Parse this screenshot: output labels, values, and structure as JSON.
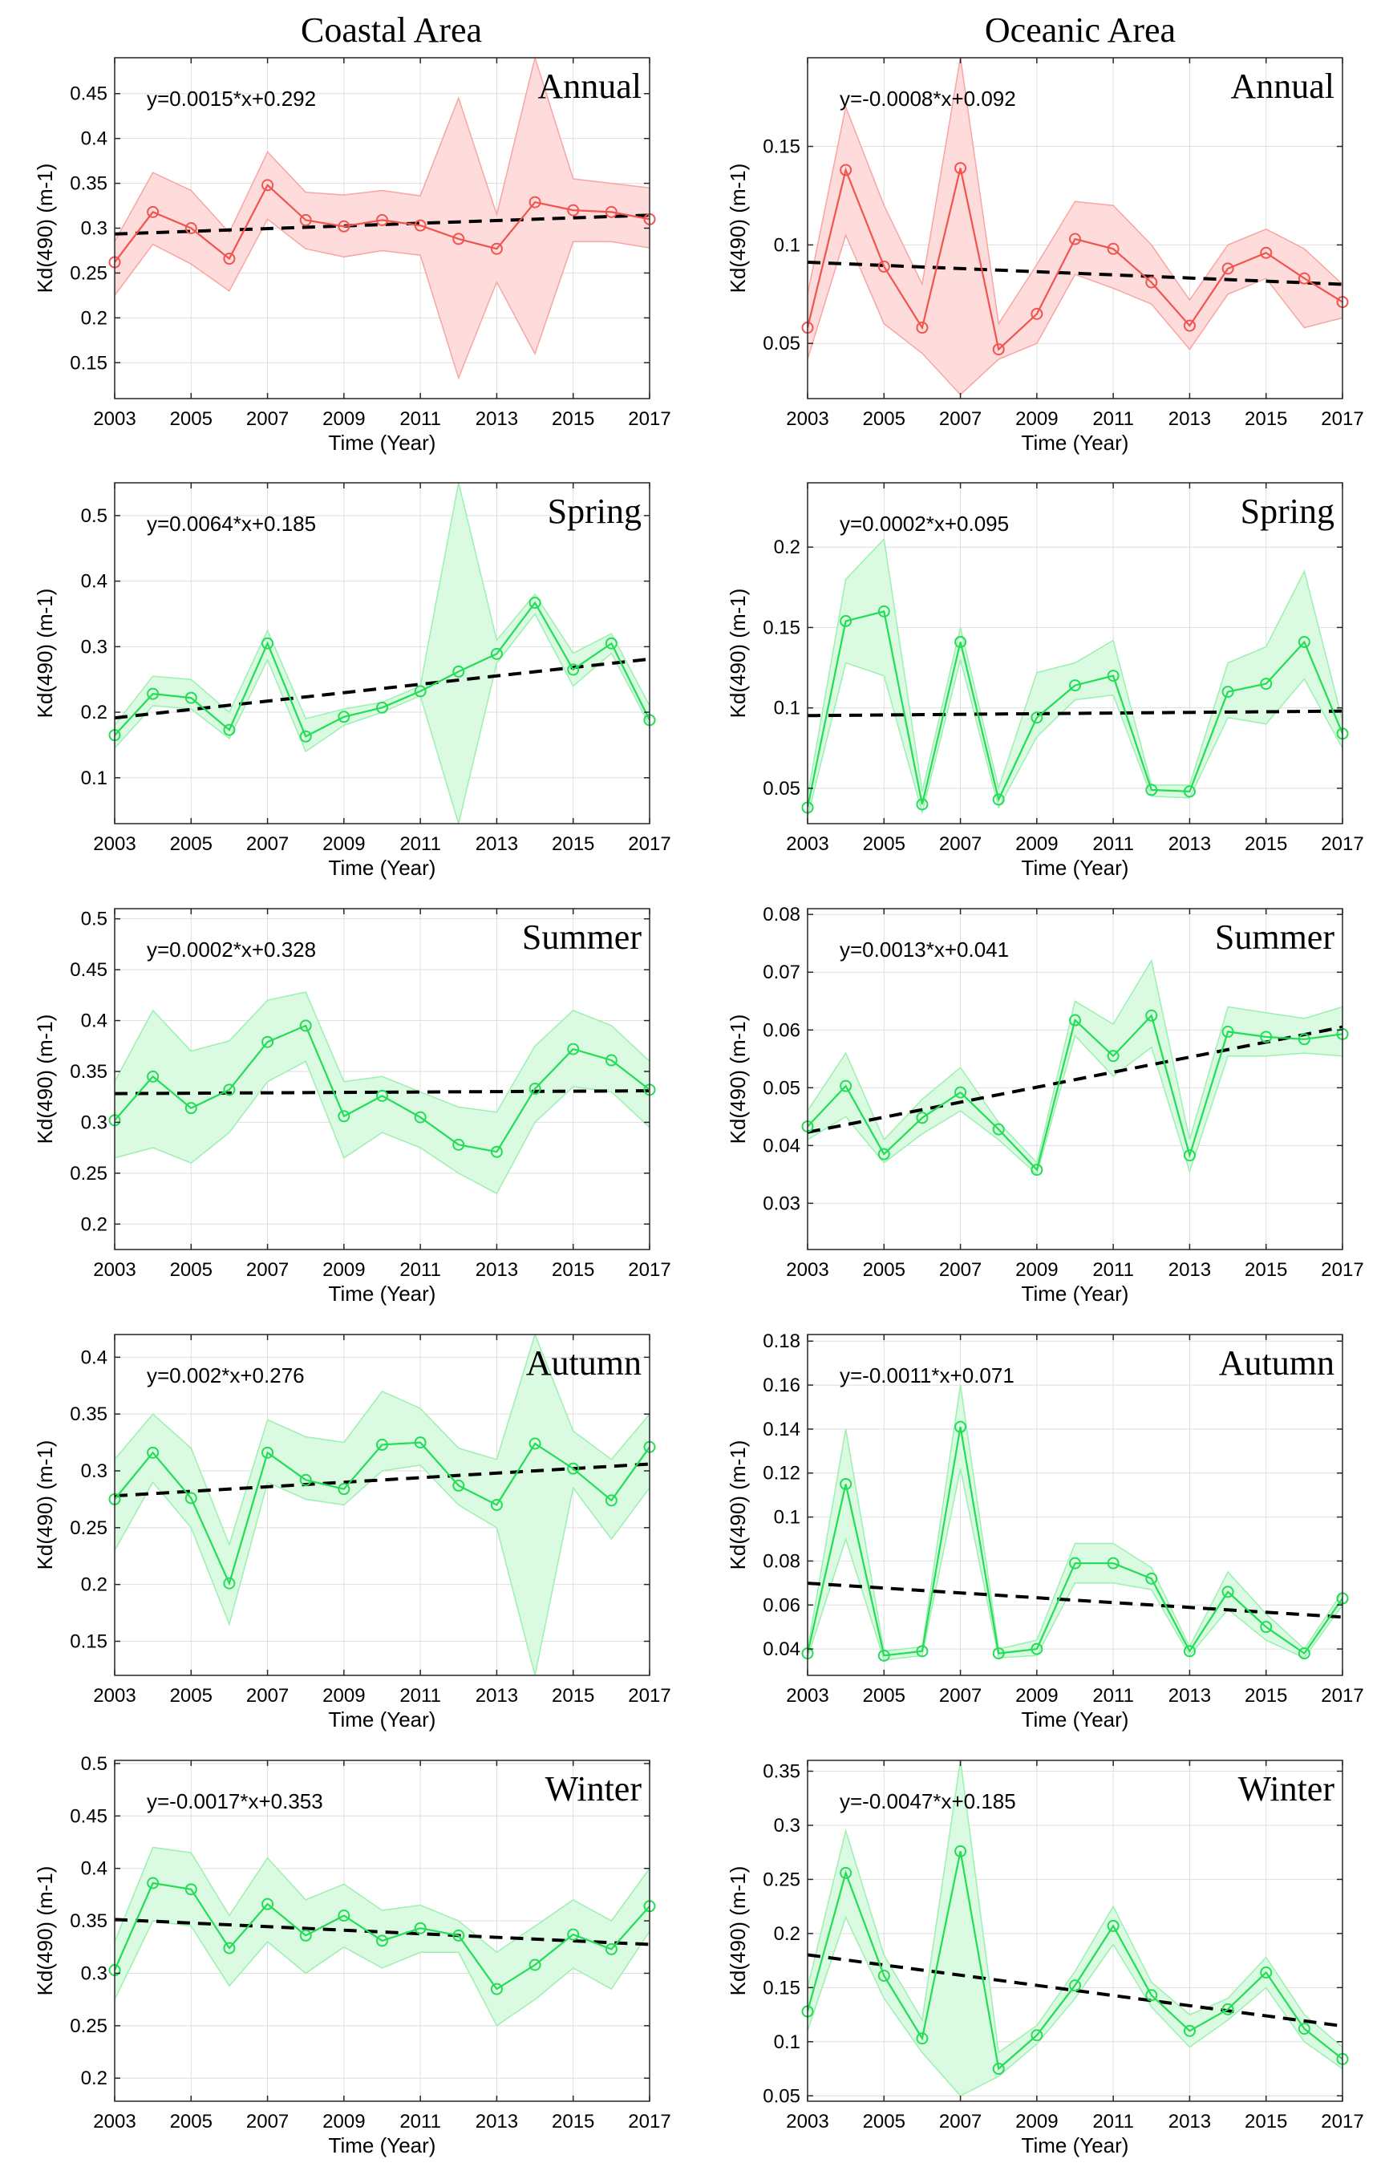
{
  "figure": {
    "column_titles": [
      "Coastal Area",
      "Oceanic Area"
    ],
    "band_colors": {
      "annual": {
        "line": "#f0544f",
        "fill": "#ffdcdc",
        "edge": "#f7a5a2"
      },
      "seasonal": {
        "line": "#22dd55",
        "fill": "#dafbe2",
        "edge": "#9bf0b0"
      }
    },
    "trend_color": "#000000"
  },
  "chart_data": [
    {
      "id": "coastal-annual",
      "type": "line",
      "area": "Coastal Area",
      "panel_label": "Annual",
      "band": "annual",
      "equation": "y=0.0015*x+0.292",
      "x": [
        2003,
        2004,
        2005,
        2006,
        2007,
        2008,
        2009,
        2010,
        2011,
        2012,
        2013,
        2014,
        2015,
        2016,
        2017
      ],
      "values": [
        0.262,
        0.318,
        0.3,
        0.266,
        0.348,
        0.309,
        0.302,
        0.309,
        0.303,
        0.288,
        0.277,
        0.329,
        0.32,
        0.318,
        0.31
      ],
      "upper": [
        0.285,
        0.362,
        0.342,
        0.295,
        0.385,
        0.34,
        0.337,
        0.342,
        0.336,
        0.445,
        0.315,
        0.49,
        0.355,
        0.35,
        0.345
      ],
      "lower": [
        0.225,
        0.282,
        0.26,
        0.23,
        0.31,
        0.277,
        0.268,
        0.275,
        0.27,
        0.133,
        0.24,
        0.16,
        0.285,
        0.285,
        0.278
      ],
      "trend": {
        "slope": 0.0015,
        "intercept": 0.292
      },
      "xlabel": "Time (Year)",
      "ylabel": "Kd(490) (m-1)",
      "xticks": [
        2003,
        2005,
        2007,
        2009,
        2011,
        2013,
        2015,
        2017
      ],
      "yticks": [
        0.15,
        0.2,
        0.25,
        0.3,
        0.35,
        0.4,
        0.45
      ],
      "ytick_labels": [
        "0.15",
        "0.2",
        "0.25",
        "0.3",
        "0.35",
        "0.4",
        "0.45"
      ],
      "xlim": [
        2003,
        2017
      ],
      "ylim": [
        0.11,
        0.49
      ],
      "grid": true
    },
    {
      "id": "oceanic-annual",
      "type": "line",
      "area": "Oceanic Area",
      "panel_label": "Annual",
      "band": "annual",
      "equation": "y=-0.0008*x+0.092",
      "x": [
        2003,
        2004,
        2005,
        2006,
        2007,
        2008,
        2009,
        2010,
        2011,
        2012,
        2013,
        2014,
        2015,
        2016,
        2017
      ],
      "values": [
        0.058,
        0.138,
        0.089,
        0.058,
        0.139,
        0.047,
        0.065,
        0.103,
        0.098,
        0.081,
        0.059,
        0.088,
        0.096,
        0.083,
        0.071
      ],
      "upper": [
        0.075,
        0.17,
        0.12,
        0.08,
        0.195,
        0.06,
        0.09,
        0.122,
        0.12,
        0.1,
        0.072,
        0.1,
        0.108,
        0.098,
        0.08
      ],
      "lower": [
        0.042,
        0.105,
        0.06,
        0.045,
        0.024,
        0.042,
        0.05,
        0.085,
        0.078,
        0.07,
        0.047,
        0.075,
        0.083,
        0.058,
        0.063
      ],
      "trend": {
        "slope": -0.0008,
        "intercept": 0.092
      },
      "xlabel": "Time (Year)",
      "ylabel": "Kd(490) (m-1)",
      "xticks": [
        2003,
        2005,
        2007,
        2009,
        2011,
        2013,
        2015,
        2017
      ],
      "yticks": [
        0.05,
        0.1,
        0.15
      ],
      "ytick_labels": [
        "0.05",
        "0.1",
        "0.15"
      ],
      "xlim": [
        2003,
        2017
      ],
      "ylim": [
        0.022,
        0.195
      ],
      "grid": true
    },
    {
      "id": "coastal-spring",
      "type": "line",
      "area": "Coastal Area",
      "panel_label": "Spring",
      "band": "seasonal",
      "equation": "y=0.0064*x+0.185",
      "x": [
        2003,
        2004,
        2005,
        2006,
        2007,
        2008,
        2009,
        2010,
        2011,
        2012,
        2013,
        2014,
        2015,
        2016,
        2017
      ],
      "values": [
        0.165,
        0.228,
        0.222,
        0.173,
        0.305,
        0.163,
        0.193,
        0.207,
        0.232,
        0.262,
        0.289,
        0.367,
        0.265,
        0.305,
        0.188
      ],
      "upper": [
        0.18,
        0.255,
        0.25,
        0.2,
        0.325,
        0.19,
        0.205,
        0.215,
        0.24,
        0.55,
        0.31,
        0.38,
        0.29,
        0.32,
        0.21
      ],
      "lower": [
        0.145,
        0.21,
        0.205,
        0.16,
        0.28,
        0.14,
        0.18,
        0.2,
        0.225,
        0.03,
        0.275,
        0.35,
        0.24,
        0.29,
        0.18
      ],
      "trend": {
        "slope": 0.0064,
        "intercept": 0.185
      },
      "xlabel": "Time (Year)",
      "ylabel": "Kd(490) (m-1)",
      "xticks": [
        2003,
        2005,
        2007,
        2009,
        2011,
        2013,
        2015,
        2017
      ],
      "yticks": [
        0.1,
        0.2,
        0.3,
        0.4,
        0.5
      ],
      "ytick_labels": [
        "0.1",
        "0.2",
        "0.3",
        "0.4",
        "0.5"
      ],
      "xlim": [
        2003,
        2017
      ],
      "ylim": [
        0.03,
        0.55
      ],
      "grid": true
    },
    {
      "id": "oceanic-spring",
      "type": "line",
      "area": "Oceanic Area",
      "panel_label": "Spring",
      "band": "seasonal",
      "equation": "y=0.0002*x+0.095",
      "x": [
        2003,
        2004,
        2005,
        2006,
        2007,
        2008,
        2009,
        2010,
        2011,
        2012,
        2013,
        2014,
        2015,
        2016,
        2017
      ],
      "values": [
        0.038,
        0.154,
        0.16,
        0.04,
        0.141,
        0.043,
        0.094,
        0.114,
        0.12,
        0.049,
        0.048,
        0.11,
        0.115,
        0.141,
        0.084
      ],
      "upper": [
        0.045,
        0.18,
        0.205,
        0.048,
        0.15,
        0.05,
        0.122,
        0.128,
        0.142,
        0.052,
        0.052,
        0.128,
        0.138,
        0.185,
        0.092
      ],
      "lower": [
        0.032,
        0.128,
        0.12,
        0.035,
        0.13,
        0.038,
        0.082,
        0.105,
        0.108,
        0.045,
        0.044,
        0.094,
        0.09,
        0.118,
        0.075
      ],
      "trend": {
        "slope": 0.0002,
        "intercept": 0.095
      },
      "xlabel": "Time (Year)",
      "ylabel": "Kd(490) (m-1)",
      "xticks": [
        2003,
        2005,
        2007,
        2009,
        2011,
        2013,
        2015,
        2017
      ],
      "yticks": [
        0.05,
        0.1,
        0.15,
        0.2
      ],
      "ytick_labels": [
        "0.05",
        "0.1",
        "0.15",
        "0.2"
      ],
      "xlim": [
        2003,
        2017
      ],
      "ylim": [
        0.028,
        0.24
      ],
      "grid": true
    },
    {
      "id": "coastal-summer",
      "type": "line",
      "area": "Coastal Area",
      "panel_label": "Summer",
      "band": "seasonal",
      "equation": "y=0.0002*x+0.328",
      "x": [
        2003,
        2004,
        2005,
        2006,
        2007,
        2008,
        2009,
        2010,
        2011,
        2012,
        2013,
        2014,
        2015,
        2016,
        2017
      ],
      "values": [
        0.302,
        0.345,
        0.314,
        0.332,
        0.379,
        0.395,
        0.306,
        0.326,
        0.305,
        0.278,
        0.271,
        0.333,
        0.372,
        0.361,
        0.332
      ],
      "upper": [
        0.34,
        0.41,
        0.37,
        0.38,
        0.42,
        0.428,
        0.34,
        0.345,
        0.33,
        0.315,
        0.31,
        0.375,
        0.41,
        0.395,
        0.36
      ],
      "lower": [
        0.265,
        0.275,
        0.26,
        0.29,
        0.34,
        0.36,
        0.265,
        0.29,
        0.275,
        0.25,
        0.23,
        0.3,
        0.335,
        0.33,
        0.295
      ],
      "trend": {
        "slope": 0.0002,
        "intercept": 0.328
      },
      "xlabel": "Time (Year)",
      "ylabel": "Kd(490) (m-1)",
      "xticks": [
        2003,
        2005,
        2007,
        2009,
        2011,
        2013,
        2015,
        2017
      ],
      "yticks": [
        0.2,
        0.25,
        0.3,
        0.35,
        0.4,
        0.45,
        0.5
      ],
      "ytick_labels": [
        "0.2",
        "0.25",
        "0.3",
        "0.35",
        "0.4",
        "0.45",
        "0.5"
      ],
      "xlim": [
        2003,
        2017
      ],
      "ylim": [
        0.175,
        0.51
      ],
      "grid": true
    },
    {
      "id": "oceanic-summer",
      "type": "line",
      "area": "Oceanic Area",
      "panel_label": "Summer",
      "band": "seasonal",
      "equation": "y=0.0013*x+0.041",
      "x": [
        2003,
        2004,
        2005,
        2006,
        2007,
        2008,
        2009,
        2010,
        2011,
        2012,
        2013,
        2014,
        2015,
        2016,
        2017
      ],
      "values": [
        0.0433,
        0.0503,
        0.0385,
        0.0448,
        0.0492,
        0.0428,
        0.0358,
        0.0617,
        0.0555,
        0.0625,
        0.0383,
        0.0597,
        0.0588,
        0.0584,
        0.0593
      ],
      "upper": [
        0.046,
        0.056,
        0.041,
        0.048,
        0.0535,
        0.044,
        0.037,
        0.065,
        0.061,
        0.072,
        0.041,
        0.064,
        0.063,
        0.062,
        0.064
      ],
      "lower": [
        0.041,
        0.045,
        0.037,
        0.042,
        0.046,
        0.041,
        0.035,
        0.059,
        0.052,
        0.057,
        0.0355,
        0.0555,
        0.0555,
        0.056,
        0.0555
      ],
      "trend": {
        "slope": 0.0013,
        "intercept": 0.041
      },
      "xlabel": "Time (Year)",
      "ylabel": "Kd(490) (m-1)",
      "xticks": [
        2003,
        2005,
        2007,
        2009,
        2011,
        2013,
        2015,
        2017
      ],
      "yticks": [
        0.03,
        0.04,
        0.05,
        0.06,
        0.07,
        0.08
      ],
      "ytick_labels": [
        "0.03",
        "0.04",
        "0.05",
        "0.06",
        "0.07",
        "0.08"
      ],
      "xlim": [
        2003,
        2017
      ],
      "ylim": [
        0.022,
        0.081
      ],
      "grid": true
    },
    {
      "id": "coastal-autumn",
      "type": "line",
      "area": "Coastal Area",
      "panel_label": "Autumn",
      "band": "seasonal",
      "equation": "y=0.002*x+0.276",
      "x": [
        2003,
        2004,
        2005,
        2006,
        2007,
        2008,
        2009,
        2010,
        2011,
        2012,
        2013,
        2014,
        2015,
        2016,
        2017
      ],
      "values": [
        0.275,
        0.316,
        0.276,
        0.201,
        0.316,
        0.292,
        0.284,
        0.323,
        0.325,
        0.287,
        0.27,
        0.324,
        0.302,
        0.274,
        0.321
      ],
      "upper": [
        0.31,
        0.35,
        0.32,
        0.235,
        0.345,
        0.33,
        0.325,
        0.37,
        0.355,
        0.32,
        0.31,
        0.42,
        0.335,
        0.31,
        0.35
      ],
      "lower": [
        0.23,
        0.29,
        0.25,
        0.165,
        0.29,
        0.275,
        0.27,
        0.3,
        0.305,
        0.27,
        0.25,
        0.12,
        0.285,
        0.24,
        0.285
      ],
      "trend": {
        "slope": 0.002,
        "intercept": 0.276
      },
      "xlabel": "Time (Year)",
      "ylabel": "Kd(490) (m-1)",
      "xticks": [
        2003,
        2005,
        2007,
        2009,
        2011,
        2013,
        2015,
        2017
      ],
      "yticks": [
        0.15,
        0.2,
        0.25,
        0.3,
        0.35,
        0.4
      ],
      "ytick_labels": [
        "0.15",
        "0.2",
        "0.25",
        "0.3",
        "0.35",
        "0.4"
      ],
      "xlim": [
        2003,
        2017
      ],
      "ylim": [
        0.12,
        0.42
      ],
      "grid": true
    },
    {
      "id": "oceanic-autumn",
      "type": "line",
      "area": "Oceanic Area",
      "panel_label": "Autumn",
      "band": "seasonal",
      "equation": "y=-0.0011*x+0.071",
      "x": [
        2003,
        2004,
        2005,
        2006,
        2007,
        2008,
        2009,
        2010,
        2011,
        2012,
        2013,
        2014,
        2015,
        2016,
        2017
      ],
      "values": [
        0.038,
        0.115,
        0.037,
        0.039,
        0.141,
        0.038,
        0.04,
        0.079,
        0.079,
        0.072,
        0.039,
        0.066,
        0.05,
        0.038,
        0.063
      ],
      "upper": [
        0.04,
        0.14,
        0.039,
        0.041,
        0.16,
        0.04,
        0.044,
        0.088,
        0.088,
        0.077,
        0.041,
        0.075,
        0.056,
        0.04,
        0.066
      ],
      "lower": [
        0.036,
        0.09,
        0.035,
        0.037,
        0.122,
        0.036,
        0.037,
        0.07,
        0.07,
        0.067,
        0.037,
        0.058,
        0.044,
        0.036,
        0.06
      ],
      "trend": {
        "slope": -0.0011,
        "intercept": 0.071
      },
      "xlabel": "Time (Year)",
      "ylabel": "Kd(490) (m-1)",
      "xticks": [
        2003,
        2005,
        2007,
        2009,
        2011,
        2013,
        2015,
        2017
      ],
      "yticks": [
        0.04,
        0.06,
        0.08,
        0.1,
        0.12,
        0.14,
        0.16,
        0.18
      ],
      "ytick_labels": [
        "0.04",
        "0.06",
        "0.08",
        "0.1",
        "0.12",
        "0.14",
        "0.16",
        "0.18"
      ],
      "xlim": [
        2003,
        2017
      ],
      "ylim": [
        0.028,
        0.183
      ],
      "grid": true
    },
    {
      "id": "coastal-winter",
      "type": "line",
      "area": "Coastal Area",
      "panel_label": "Winter",
      "band": "seasonal",
      "equation": "y=-0.0017*x+0.353",
      "x": [
        2003,
        2004,
        2005,
        2006,
        2007,
        2008,
        2009,
        2010,
        2011,
        2012,
        2013,
        2014,
        2015,
        2016,
        2017
      ],
      "values": [
        0.303,
        0.386,
        0.38,
        0.324,
        0.366,
        0.336,
        0.355,
        0.331,
        0.343,
        0.336,
        0.285,
        0.308,
        0.337,
        0.323,
        0.364
      ],
      "upper": [
        0.33,
        0.42,
        0.415,
        0.355,
        0.41,
        0.37,
        0.385,
        0.36,
        0.365,
        0.35,
        0.32,
        0.345,
        0.37,
        0.35,
        0.4
      ],
      "lower": [
        0.275,
        0.35,
        0.345,
        0.288,
        0.33,
        0.3,
        0.325,
        0.305,
        0.32,
        0.32,
        0.25,
        0.275,
        0.305,
        0.285,
        0.34
      ],
      "trend": {
        "slope": -0.0017,
        "intercept": 0.353
      },
      "xlabel": "Time (Year)",
      "ylabel": "Kd(490) (m-1)",
      "xticks": [
        2003,
        2005,
        2007,
        2009,
        2011,
        2013,
        2015,
        2017
      ],
      "yticks": [
        0.2,
        0.25,
        0.3,
        0.35,
        0.4,
        0.45,
        0.5
      ],
      "ytick_labels": [
        "0.2",
        "0.25",
        "0.3",
        "0.35",
        "0.4",
        "0.45",
        "0.5"
      ],
      "xlim": [
        2003,
        2017
      ],
      "ylim": [
        0.178,
        0.503
      ],
      "grid": true
    },
    {
      "id": "oceanic-winter",
      "type": "line",
      "area": "Oceanic Area",
      "panel_label": "Winter",
      "band": "seasonal",
      "equation": "y=-0.0047*x+0.185",
      "x": [
        2003,
        2004,
        2005,
        2006,
        2007,
        2008,
        2009,
        2010,
        2011,
        2012,
        2013,
        2014,
        2015,
        2016,
        2017
      ],
      "values": [
        0.128,
        0.256,
        0.161,
        0.103,
        0.276,
        0.075,
        0.106,
        0.152,
        0.207,
        0.143,
        0.11,
        0.13,
        0.164,
        0.112,
        0.084
      ],
      "upper": [
        0.15,
        0.295,
        0.18,
        0.12,
        0.36,
        0.09,
        0.115,
        0.165,
        0.225,
        0.155,
        0.125,
        0.14,
        0.178,
        0.125,
        0.095
      ],
      "lower": [
        0.11,
        0.215,
        0.14,
        0.09,
        0.05,
        0.068,
        0.098,
        0.14,
        0.19,
        0.132,
        0.095,
        0.12,
        0.15,
        0.1,
        0.075
      ],
      "trend": {
        "slope": -0.0047,
        "intercept": 0.185
      },
      "xlabel": "Time (Year)",
      "ylabel": "Kd(490) (m-1)",
      "xticks": [
        2003,
        2005,
        2007,
        2009,
        2011,
        2013,
        2015,
        2017
      ],
      "yticks": [
        0.05,
        0.1,
        0.15,
        0.2,
        0.25,
        0.3,
        0.35
      ],
      "ytick_labels": [
        "0.05",
        "0.1",
        "0.15",
        "0.2",
        "0.25",
        "0.3",
        "0.35"
      ],
      "xlim": [
        2003,
        2017
      ],
      "ylim": [
        0.045,
        0.36
      ],
      "grid": true
    }
  ]
}
